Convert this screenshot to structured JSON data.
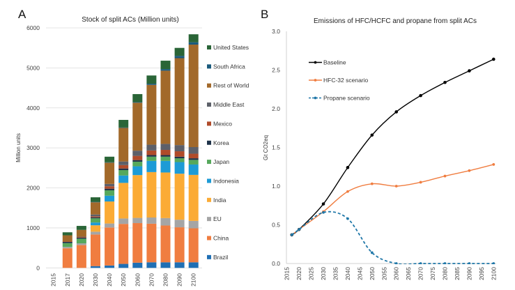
{
  "figure": {
    "panel_a_label": "A",
    "panel_b_label": "B"
  },
  "chart_data": [
    {
      "panel": "A",
      "type": "bar",
      "stacked": true,
      "title": "Stock of split ACs (Million units)",
      "xlabel": "",
      "ylabel": "Million units",
      "ylim": [
        0,
        6000
      ],
      "yticks": [
        0,
        1000,
        2000,
        3000,
        4000,
        5000,
        6000
      ],
      "grid": true,
      "legend_position": "right",
      "categories": [
        "2015",
        "2017",
        "2020",
        "2030",
        "2040",
        "2050",
        "2060",
        "2070",
        "2080",
        "2090",
        "2100"
      ],
      "series": [
        {
          "name": "Brazil",
          "color": "#1f6fb4",
          "values": [
            0,
            0,
            0,
            45,
            60,
            100,
            130,
            140,
            140,
            140,
            140
          ]
        },
        {
          "name": "China",
          "color": "#f07d40",
          "values": [
            0,
            490,
            570,
            790,
            950,
            1000,
            990,
            965,
            920,
            875,
            850
          ]
        },
        {
          "name": "EU",
          "color": "#a5a5a5",
          "values": [
            0,
            35,
            45,
            70,
            100,
            135,
            130,
            155,
            185,
            190,
            185
          ]
        },
        {
          "name": "India",
          "color": "#fbab35",
          "values": [
            0,
            0,
            0,
            160,
            550,
            890,
            1070,
            1135,
            1140,
            1150,
            1150
          ]
        },
        {
          "name": "Indonesia",
          "color": "#1d9bd6",
          "values": [
            0,
            0,
            0,
            70,
            145,
            185,
            220,
            280,
            290,
            290,
            260
          ]
        },
        {
          "name": "Japan",
          "color": "#56a85c",
          "values": [
            0,
            95,
            115,
            105,
            135,
            135,
            115,
            105,
            105,
            95,
            115
          ]
        },
        {
          "name": "Korea",
          "color": "#1e3249",
          "values": [
            0,
            30,
            25,
            25,
            40,
            40,
            40,
            40,
            40,
            40,
            40
          ]
        },
        {
          "name": "Mexico",
          "color": "#b04b2a",
          "values": [
            0,
            10,
            15,
            25,
            60,
            85,
            105,
            115,
            130,
            135,
            115
          ]
        },
        {
          "name": "Middle East",
          "color": "#5d6069",
          "values": [
            0,
            0,
            10,
            45,
            60,
            90,
            130,
            145,
            150,
            155,
            165
          ]
        },
        {
          "name": "Rest of World",
          "color": "#a2692a",
          "values": [
            0,
            155,
            170,
            305,
            530,
            840,
            1200,
            1495,
            1830,
            2172,
            2562
          ]
        },
        {
          "name": "South Africa",
          "color": "#1a5a7c",
          "values": [
            0,
            0,
            0,
            10,
            10,
            10,
            15,
            30,
            40,
            58,
            58
          ]
        },
        {
          "name": "United States",
          "color": "#2a6537",
          "values": [
            0,
            75,
            100,
            115,
            140,
            190,
            200,
            205,
            210,
            200,
            200
          ]
        }
      ]
    },
    {
      "panel": "B",
      "type": "line",
      "title": "Emissions of HFC/HCFC and propane from split ACs",
      "xlabel": "",
      "ylabel": "Gt CO2eq",
      "xlim": [
        2015,
        2100
      ],
      "ylim": [
        0,
        3.0
      ],
      "xticks": [
        2015,
        2020,
        2025,
        2030,
        2035,
        2040,
        2045,
        2050,
        2055,
        2060,
        2065,
        2070,
        2075,
        2080,
        2085,
        2090,
        2095,
        2100
      ],
      "yticks": [
        0,
        0.5,
        1.0,
        1.5,
        2.0,
        2.5,
        3.0
      ],
      "ytick_labels": [
        "0.0",
        "0.5",
        "1.0",
        "1.5",
        "2.0",
        "2.5",
        "3.0"
      ],
      "grid": false,
      "legend_position": "top-left",
      "x": [
        2017,
        2020,
        2030,
        2040,
        2050,
        2060,
        2070,
        2080,
        2090,
        2100
      ],
      "series": [
        {
          "name": "Baseline",
          "color": "#000000",
          "line_style": "solid",
          "marker": "circle",
          "values": [
            0.37,
            0.44,
            0.77,
            1.24,
            1.66,
            1.96,
            2.17,
            2.34,
            2.49,
            2.64
          ]
        },
        {
          "name": "HFC-32 scenario",
          "color": "#f07d40",
          "line_style": "solid",
          "marker": "circle",
          "values": [
            0.37,
            0.44,
            0.67,
            0.93,
            1.03,
            1.0,
            1.05,
            1.13,
            1.2,
            1.28
          ]
        },
        {
          "name": "Propane scenario",
          "color": "#1f77a8",
          "line_style": "dashed",
          "marker": "circle",
          "values": [
            0.37,
            0.44,
            0.66,
            0.58,
            0.14,
            0.0,
            0.0,
            0.0,
            0.0,
            0.0
          ]
        }
      ]
    }
  ]
}
